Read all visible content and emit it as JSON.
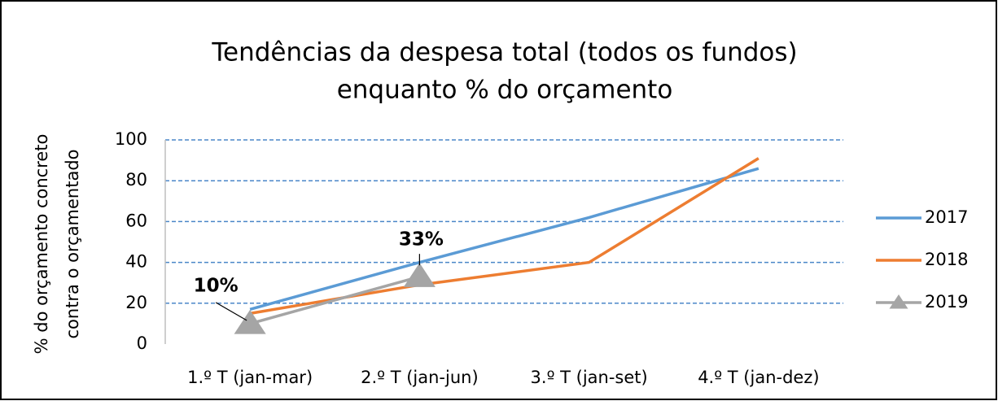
{
  "chart_data": {
    "type": "line",
    "title": [
      "Tendências da despesa total (todos os fundos)",
      "enquanto % do orçamento"
    ],
    "y_label": [
      "% do orçamento concreto",
      "contra o orçamentado"
    ],
    "categories": [
      "1.º T (jan-mar)",
      "2.º T (jan-jun)",
      "3.º T (jan-set)",
      "4.º T (jan-dez)"
    ],
    "series": [
      {
        "name": "2017",
        "color": "#5b9bd5",
        "values": [
          17,
          40,
          62,
          86
        ]
      },
      {
        "name": "2018",
        "color": "#ed7d31",
        "values": [
          15,
          29,
          40,
          91
        ]
      },
      {
        "name": "2019",
        "color": "#a5a5a5",
        "marker": "triangle",
        "values": [
          10,
          33,
          null,
          null
        ],
        "value_labels": [
          "10%",
          "33%",
          null,
          null
        ]
      }
    ],
    "ylim": [
      0,
      100
    ],
    "yticks": [
      0,
      20,
      40,
      60,
      80,
      100
    ],
    "grid": true,
    "legend": "right"
  }
}
